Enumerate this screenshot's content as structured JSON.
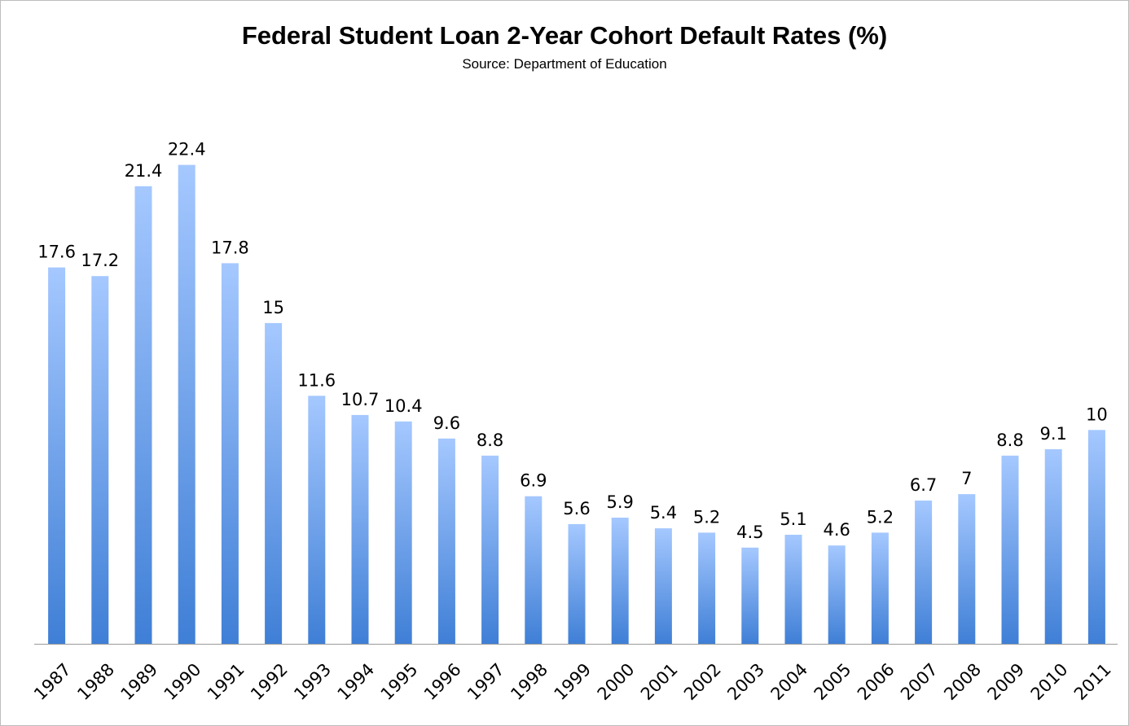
{
  "chart_data": {
    "type": "bar",
    "title": "Federal Student Loan 2-Year Cohort Default Rates (%)",
    "subtitle": "Source: Department of Education",
    "categories": [
      "1987",
      "1988",
      "1989",
      "1990",
      "1991",
      "1992",
      "1993",
      "1994",
      "1995",
      "1996",
      "1997",
      "1998",
      "1999",
      "2000",
      "2001",
      "2002",
      "2003",
      "2004",
      "2005",
      "2006",
      "2007",
      "2008",
      "2009",
      "2010",
      "2011"
    ],
    "values": [
      17.6,
      17.2,
      21.4,
      22.4,
      17.8,
      15,
      11.6,
      10.7,
      10.4,
      9.6,
      8.8,
      6.9,
      5.6,
      5.9,
      5.4,
      5.2,
      4.5,
      5.1,
      4.6,
      5.2,
      6.7,
      7,
      8.8,
      9.1,
      10
    ],
    "value_labels": [
      "17.6",
      "17.2",
      "21.4",
      "22.4",
      "17.8",
      "15",
      "11.6",
      "10.7",
      "10.4",
      "9.6",
      "8.8",
      "6.9",
      "5.6",
      "5.9",
      "5.4",
      "5.2",
      "4.5",
      "5.1",
      "4.6",
      "5.2",
      "6.7",
      "7",
      "8.8",
      "9.1",
      "10"
    ],
    "ylim": [
      0,
      25
    ],
    "grid": false,
    "legend": "none",
    "data_labels": "above bars",
    "bar_color_top": "#a5c8ff",
    "bar_color_bottom": "#3f7fd6"
  }
}
